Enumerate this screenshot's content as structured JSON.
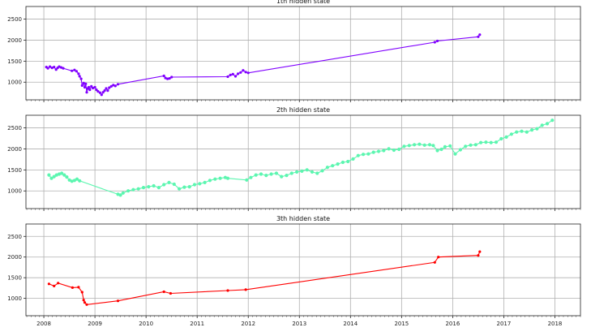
{
  "chart_data": [
    {
      "type": "line",
      "title": "1th hidden state",
      "xlabel": "",
      "ylabel": "",
      "xlim": [
        2007.65,
        2018.5
      ],
      "ylim": [
        580,
        2800
      ],
      "xticks": [
        "2008",
        "2009",
        "2010",
        "2011",
        "2012",
        "2013",
        "2014",
        "2015",
        "2016",
        "2017",
        "2018"
      ],
      "yticks": [
        "1000",
        "1500",
        "2000",
        "2500"
      ],
      "grid": true,
      "color": "#8000ff",
      "marker": true,
      "series": [
        {
          "x": [
            2008.05,
            2008.08,
            2008.12,
            2008.16,
            2008.2,
            2008.24,
            2008.27,
            2008.3,
            2008.34,
            2008.38,
            2008.55,
            2008.6,
            2008.64,
            2008.68,
            2008.7,
            2008.73,
            2008.75,
            2008.78,
            2008.8,
            2008.82,
            2008.84,
            2008.86,
            2008.88,
            2008.9,
            2008.93,
            2008.96,
            2009.0,
            2009.03,
            2009.06,
            2009.1,
            2009.13,
            2009.16,
            2009.19,
            2009.22,
            2009.25,
            2009.28,
            2009.32,
            2009.36,
            2009.4,
            2009.45,
            2010.35,
            2010.38,
            2010.42,
            2010.46,
            2010.5,
            2011.6,
            2011.65,
            2011.7,
            2011.75,
            2011.8,
            2011.85,
            2011.9,
            2011.95,
            2012.0,
            2015.65,
            2015.7,
            2016.5,
            2016.53
          ],
          "y": [
            1360,
            1330,
            1370,
            1340,
            1360,
            1300,
            1340,
            1370,
            1350,
            1330,
            1270,
            1290,
            1260,
            1200,
            1140,
            1080,
            920,
            980,
            880,
            960,
            760,
            850,
            880,
            820,
            900,
            860,
            880,
            820,
            780,
            750,
            700,
            760,
            800,
            850,
            800,
            870,
            900,
            930,
            910,
            950,
            1150,
            1100,
            1080,
            1090,
            1120,
            1130,
            1170,
            1190,
            1140,
            1200,
            1230,
            1280,
            1240,
            1220,
            1950,
            1980,
            2080,
            2130
          ]
        }
      ]
    },
    {
      "type": "line",
      "title": "2th hidden state",
      "xlabel": "",
      "ylabel": "",
      "xlim": [
        2007.65,
        2018.5
      ],
      "ylim": [
        580,
        2800
      ],
      "xticks": [
        "2008",
        "2009",
        "2010",
        "2011",
        "2012",
        "2013",
        "2014",
        "2015",
        "2016",
        "2017",
        "2018"
      ],
      "yticks": [
        "1000",
        "1500",
        "2000",
        "2500"
      ],
      "grid": true,
      "color": "#5cf6b0",
      "marker": true,
      "series": [
        {
          "x": [
            2008.1,
            2008.15,
            2008.2,
            2008.25,
            2008.3,
            2008.35,
            2008.4,
            2008.45,
            2008.5,
            2008.55,
            2008.6,
            2008.65,
            2008.7,
            2009.45,
            2009.5,
            2009.55,
            2009.65,
            2009.75,
            2009.85,
            2009.95,
            2010.05,
            2010.15,
            2010.25,
            2010.35,
            2010.45,
            2010.55,
            2010.65,
            2010.75,
            2010.85,
            2010.95,
            2011.05,
            2011.15,
            2011.25,
            2011.35,
            2011.45,
            2011.55,
            2011.6,
            2011.97,
            2012.05,
            2012.15,
            2012.25,
            2012.35,
            2012.45,
            2012.55,
            2012.65,
            2012.75,
            2012.85,
            2012.95,
            2013.05,
            2013.15,
            2013.25,
            2013.35,
            2013.45,
            2013.55,
            2013.65,
            2013.75,
            2013.85,
            2013.95,
            2014.05,
            2014.15,
            2014.25,
            2014.35,
            2014.45,
            2014.55,
            2014.65,
            2014.75,
            2014.85,
            2014.95,
            2015.05,
            2015.15,
            2015.25,
            2015.35,
            2015.45,
            2015.55,
            2015.62,
            2015.7,
            2015.78,
            2015.85,
            2015.95,
            2016.05,
            2016.15,
            2016.25,
            2016.35,
            2016.45,
            2016.55,
            2016.65,
            2016.75,
            2016.85,
            2016.95,
            2017.05,
            2017.15,
            2017.25,
            2017.35,
            2017.45,
            2017.55,
            2017.65,
            2017.75,
            2017.85,
            2017.95
          ],
          "y": [
            1380,
            1300,
            1340,
            1380,
            1400,
            1420,
            1380,
            1330,
            1260,
            1230,
            1250,
            1280,
            1240,
            920,
            900,
            950,
            1000,
            1030,
            1050,
            1080,
            1100,
            1120,
            1080,
            1150,
            1200,
            1160,
            1050,
            1090,
            1100,
            1150,
            1170,
            1200,
            1250,
            1280,
            1300,
            1320,
            1300,
            1260,
            1320,
            1380,
            1400,
            1370,
            1400,
            1420,
            1340,
            1370,
            1420,
            1450,
            1470,
            1500,
            1450,
            1420,
            1480,
            1560,
            1600,
            1640,
            1680,
            1700,
            1760,
            1840,
            1870,
            1880,
            1920,
            1940,
            1960,
            2000,
            1970,
            1990,
            2060,
            2080,
            2100,
            2110,
            2090,
            2100,
            2080,
            1960,
            1990,
            2050,
            2070,
            1880,
            1980,
            2060,
            2090,
            2100,
            2150,
            2160,
            2150,
            2160,
            2240,
            2280,
            2350,
            2400,
            2420,
            2400,
            2450,
            2480,
            2560,
            2600,
            2680
          ]
        }
      ]
    },
    {
      "type": "line",
      "title": "3th hidden state",
      "xlabel": "",
      "ylabel": "",
      "xlim": [
        2007.65,
        2018.5
      ],
      "ylim": [
        580,
        2800
      ],
      "xticks": [
        "2008",
        "2009",
        "2010",
        "2011",
        "2012",
        "2013",
        "2014",
        "2015",
        "2016",
        "2017",
        "2018"
      ],
      "yticks": [
        "1000",
        "1500",
        "2000",
        "2500"
      ],
      "grid": true,
      "color": "#ff0000",
      "marker": true,
      "series": [
        {
          "x": [
            2008.1,
            2008.2,
            2008.28,
            2008.56,
            2008.68,
            2008.75,
            2008.78,
            2008.8,
            2008.84,
            2009.45,
            2010.35,
            2010.48,
            2011.6,
            2011.95,
            2015.65,
            2015.72,
            2016.5,
            2016.53
          ],
          "y": [
            1350,
            1300,
            1370,
            1260,
            1270,
            1150,
            960,
            900,
            850,
            940,
            1160,
            1120,
            1190,
            1210,
            1870,
            2000,
            2040,
            2130
          ]
        }
      ]
    }
  ]
}
